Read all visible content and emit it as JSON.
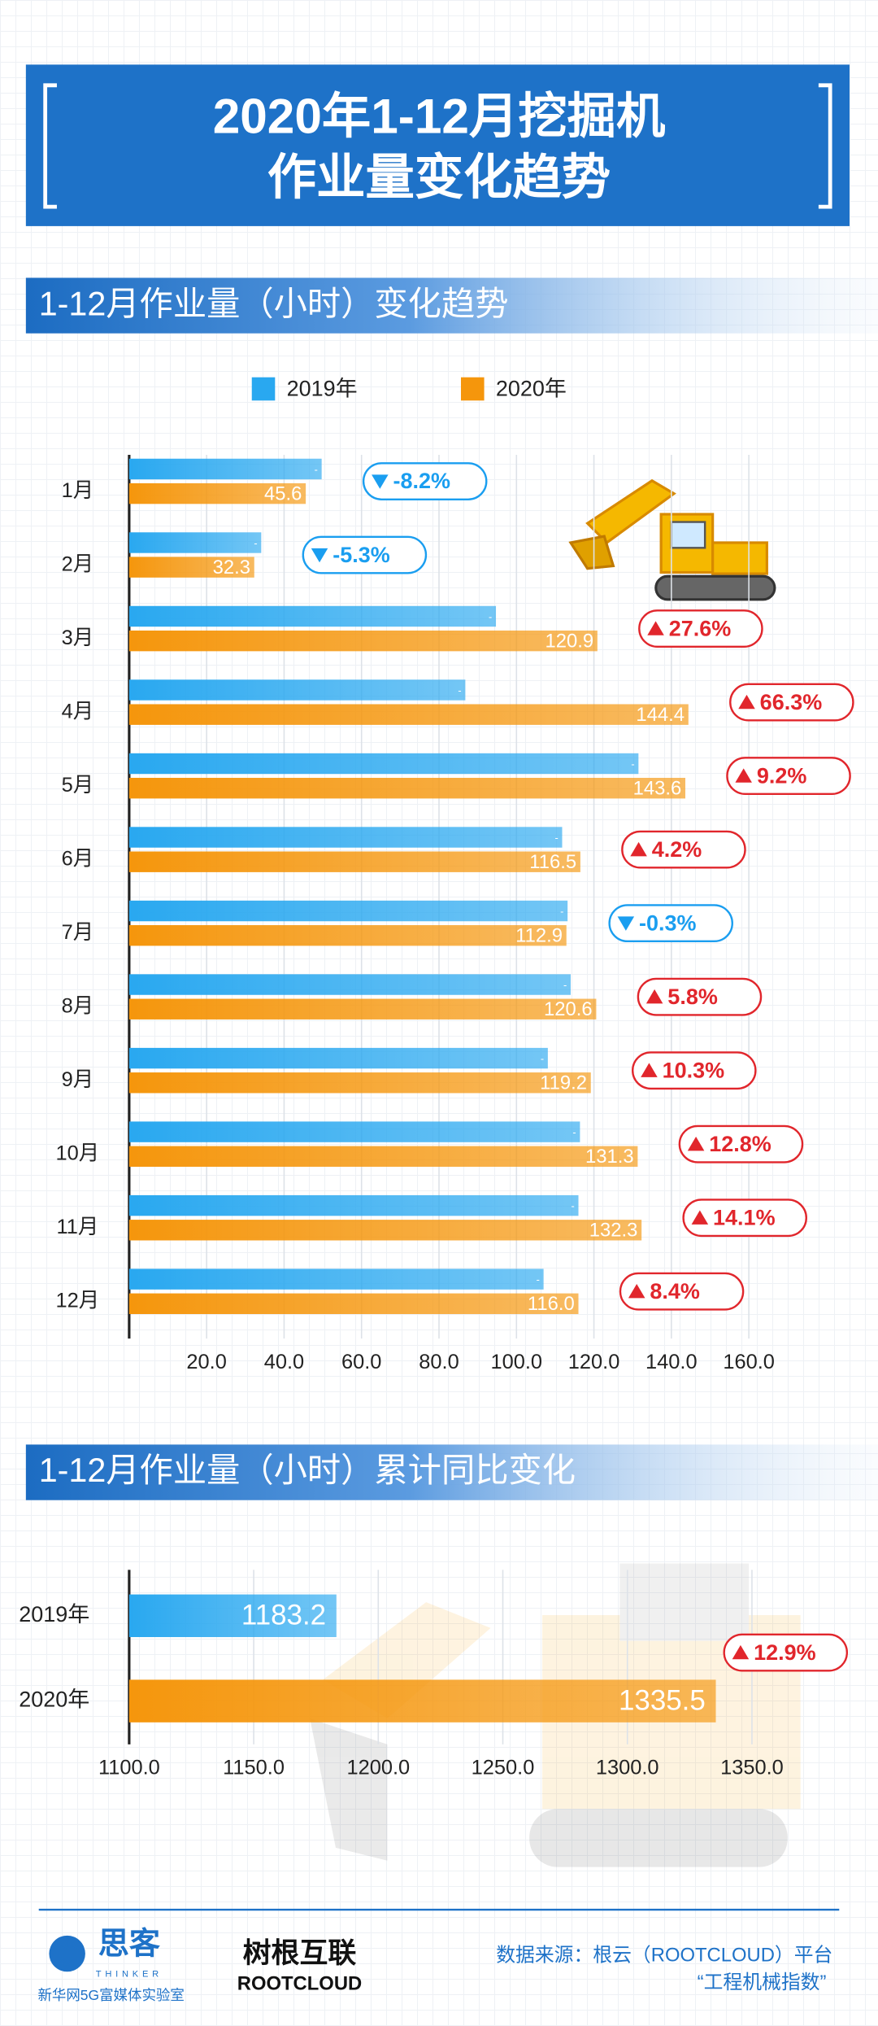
{
  "header": {
    "title_lines": [
      "2020年1-12月挖掘机",
      "作业量变化趋势"
    ]
  },
  "chart_data": [
    {
      "type": "bar",
      "orientation": "horizontal",
      "title": "1-12月作业量（小时）变化趋势",
      "categories": [
        "1月",
        "2月",
        "3月",
        "4月",
        "5月",
        "6月",
        "7月",
        "8月",
        "9月",
        "10月",
        "11月",
        "12月"
      ],
      "series": [
        {
          "name": "2019年",
          "color": "#29a8f0",
          "values": [
            49.7,
            34.1,
            94.7,
            86.8,
            131.5,
            111.8,
            113.2,
            114.0,
            108.1,
            116.4,
            116.0,
            107.0
          ],
          "value_labels": [
            "-",
            "-",
            "-",
            "-",
            "-",
            "-",
            "-",
            "-",
            "-",
            "-",
            "-",
            "-"
          ]
        },
        {
          "name": "2020年",
          "color": "#f5960c",
          "values": [
            45.6,
            32.3,
            120.9,
            144.4,
            143.6,
            116.5,
            112.9,
            120.6,
            119.2,
            131.3,
            132.3,
            116.0
          ],
          "value_labels": [
            "45.6",
            "32.3",
            "120.9",
            "144.4",
            "143.6",
            "116.5",
            "112.9",
            "120.6",
            "119.2",
            "131.3",
            "132.3",
            "116.0"
          ]
        }
      ],
      "changes": [
        {
          "value": -8.2,
          "label": "-8.2%"
        },
        {
          "value": -5.3,
          "label": "-5.3%"
        },
        {
          "value": 27.6,
          "label": "27.6%"
        },
        {
          "value": 66.3,
          "label": "66.3%"
        },
        {
          "value": 9.2,
          "label": "9.2%"
        },
        {
          "value": 4.2,
          "label": "4.2%"
        },
        {
          "value": -0.3,
          "label": "-0.3%"
        },
        {
          "value": 5.8,
          "label": "5.8%"
        },
        {
          "value": 10.3,
          "label": "10.3%"
        },
        {
          "value": 12.8,
          "label": "12.8%"
        },
        {
          "value": 14.1,
          "label": "14.1%"
        },
        {
          "value": 8.4,
          "label": "8.4%"
        }
      ],
      "xlim": [
        0,
        170
      ],
      "xticks": [
        {
          "value": 20,
          "label": "20.0"
        },
        {
          "value": 40,
          "label": "40.0"
        },
        {
          "value": 60,
          "label": "60.0"
        },
        {
          "value": 80,
          "label": "80.0"
        },
        {
          "value": 100,
          "label": "100.0"
        },
        {
          "value": 120,
          "label": "120.0"
        },
        {
          "value": 140,
          "label": "140.0"
        },
        {
          "value": 160,
          "label": "160.0"
        }
      ],
      "grid": true,
      "legend": "top"
    },
    {
      "type": "bar",
      "orientation": "horizontal",
      "title": "1-12月作业量（小时）累计同比变化",
      "categories": [
        "2019年",
        "2020年"
      ],
      "values": [
        1183.2,
        1335.5
      ],
      "colors": [
        "#29a8f0",
        "#f5960c"
      ],
      "changes": [
        {
          "value": 12.9,
          "label": "12.9%"
        }
      ],
      "xlim": [
        1100,
        1370
      ],
      "xticks": [
        {
          "value": 1100,
          "label": "1100.0"
        },
        {
          "value": 1150,
          "label": "1150.0"
        },
        {
          "value": 1200,
          "label": "1200.0"
        },
        {
          "value": 1250,
          "label": "1250.0"
        },
        {
          "value": 1300,
          "label": "1300.0"
        },
        {
          "value": 1350,
          "label": "1350.0"
        }
      ],
      "grid": true
    }
  ],
  "footer": {
    "logo_left": "思客",
    "logo_left_en": "THINKER",
    "lab": "新华网5G富媒体实验室",
    "logo_mid": "树根互联",
    "logo_mid_en": "ROOTCLOUD",
    "source": "数据来源：根云（ROOTCLOUD）平台",
    "source_name": "“工程机械指数”"
  }
}
